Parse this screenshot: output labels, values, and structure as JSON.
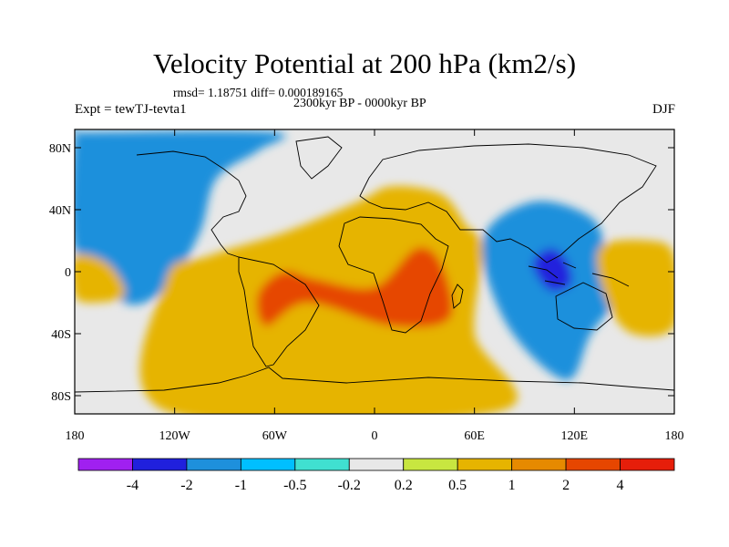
{
  "header": {
    "title": "Velocity Potential at 200 hPa (km2/s)",
    "stats": "rmsd= 1.18751 diff= 0.000189165",
    "subtitle": "2300kyr BP - 0000kyr BP",
    "experiment": "Expt = tewTJ-tevta1",
    "season": "DJF"
  },
  "map": {
    "y_tick_labels": [
      "80N",
      "40N",
      "0",
      "40S",
      "80S"
    ],
    "x_tick_labels": [
      "180",
      "120W",
      "60W",
      "0",
      "60E",
      "120E",
      "180"
    ],
    "fields": [
      {
        "name": "strong-negative-core",
        "level": -3,
        "points": [
          [
            -150,
            40
          ],
          [
            -133,
            30
          ],
          [
            -125,
            5
          ],
          [
            -140,
            8
          ],
          [
            -155,
            22
          ]
        ]
      },
      {
        "name": "negative-western-hemisphere",
        "level": -2,
        "points": [
          [
            -175,
            90
          ],
          [
            -180,
            90
          ],
          [
            -180,
            15
          ],
          [
            -150,
            -20
          ],
          [
            -125,
            -10
          ],
          [
            -105,
            25
          ],
          [
            -95,
            60
          ],
          [
            -70,
            78
          ],
          [
            -60,
            90
          ]
        ]
      },
      {
        "name": "positive-atlantic-africa-indian",
        "level": 1,
        "points": [
          [
            -125,
            -90
          ],
          [
            -125,
            -5
          ],
          [
            -100,
            10
          ],
          [
            -55,
            25
          ],
          [
            -10,
            45
          ],
          [
            10,
            55
          ],
          [
            40,
            50
          ],
          [
            55,
            30
          ],
          [
            65,
            15
          ],
          [
            60,
            -40
          ],
          [
            75,
            -90
          ]
        ]
      },
      {
        "name": "positive-core-africa-brazil",
        "level": 2,
        "points": [
          [
            -70,
            -15
          ],
          [
            -55,
            0
          ],
          [
            -35,
            -5
          ],
          [
            0,
            -10
          ],
          [
            25,
            15
          ],
          [
            40,
            5
          ],
          [
            45,
            -30
          ],
          [
            10,
            -35
          ],
          [
            -40,
            -20
          ],
          [
            -65,
            -35
          ]
        ]
      },
      {
        "name": "negative-maritime-continent",
        "level": -2,
        "points": [
          [
            65,
            20
          ],
          [
            95,
            45
          ],
          [
            130,
            35
          ],
          [
            140,
            10
          ],
          [
            150,
            -10
          ],
          [
            130,
            -40
          ],
          [
            115,
            -70
          ],
          [
            80,
            -35
          ]
        ]
      },
      {
        "name": "negative-core-maritime-continent",
        "level": -3,
        "points": [
          [
            95,
            5
          ],
          [
            105,
            15
          ],
          [
            115,
            8
          ],
          [
            118,
            -8
          ],
          [
            105,
            -12
          ]
        ]
      },
      {
        "name": "positive-west-pacific",
        "level": 1,
        "points": [
          [
            135,
            15
          ],
          [
            165,
            20
          ],
          [
            180,
            10
          ],
          [
            180,
            -35
          ],
          [
            155,
            -40
          ],
          [
            140,
            -20
          ]
        ]
      },
      {
        "name": "positive-east-pacific",
        "level": 1,
        "points": [
          [
            -180,
            10
          ],
          [
            -160,
            5
          ],
          [
            -150,
            -15
          ],
          [
            -170,
            -20
          ],
          [
            -180,
            -15
          ]
        ]
      }
    ]
  },
  "colorbar": {
    "colors": [
      "#a020f0",
      "#2020dd",
      "#1e90dc",
      "#00bfff",
      "#40e0d0",
      "#e8e8e8",
      "#c8e640",
      "#e6b400",
      "#e68a00",
      "#e64600",
      "#e61e0a"
    ],
    "labels": [
      "-4",
      "-2",
      "-1",
      "-0.5",
      "-0.2",
      "0.2",
      "0.5",
      "1",
      "2",
      "4"
    ]
  }
}
